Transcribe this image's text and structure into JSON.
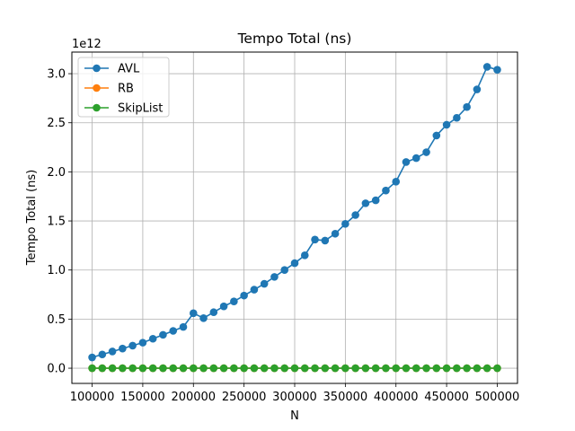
{
  "chart_data": {
    "type": "line",
    "title": "Tempo Total (ns)",
    "xlabel": "N",
    "ylabel": "Tempo Total (ns)",
    "y_offset_label": "1e12",
    "y_scale": 1000000000000.0,
    "xlim": [
      80000,
      520000
    ],
    "ylim": [
      -0.155,
      3.22
    ],
    "x_ticks": [
      100000,
      150000,
      200000,
      250000,
      300000,
      350000,
      400000,
      450000,
      500000
    ],
    "x_tick_labels": [
      "100000",
      "150000",
      "200000",
      "250000",
      "300000",
      "350000",
      "400000",
      "450000",
      "500000"
    ],
    "y_ticks": [
      0.0,
      0.5,
      1.0,
      1.5,
      2.0,
      2.5,
      3.0
    ],
    "y_tick_labels": [
      "0.0",
      "0.5",
      "1.0",
      "1.5",
      "2.0",
      "2.5",
      "3.0"
    ],
    "grid": true,
    "legend_position": "top-left",
    "x": [
      100000,
      110000,
      120000,
      130000,
      140000,
      150000,
      160000,
      170000,
      180000,
      190000,
      200000,
      210000,
      220000,
      230000,
      240000,
      250000,
      260000,
      270000,
      280000,
      290000,
      300000,
      310000,
      320000,
      330000,
      340000,
      350000,
      360000,
      370000,
      380000,
      390000,
      400000,
      410000,
      420000,
      430000,
      440000,
      450000,
      460000,
      470000,
      480000,
      490000,
      500000
    ],
    "series": [
      {
        "name": "AVL",
        "color": "#1f77b4",
        "values": [
          0.11,
          0.14,
          0.17,
          0.2,
          0.23,
          0.26,
          0.3,
          0.34,
          0.38,
          0.42,
          0.56,
          0.51,
          0.57,
          0.63,
          0.68,
          0.74,
          0.8,
          0.86,
          0.93,
          1.0,
          1.07,
          1.15,
          1.31,
          1.3,
          1.37,
          1.47,
          1.56,
          1.68,
          1.71,
          1.81,
          1.9,
          2.1,
          2.14,
          2.2,
          2.37,
          2.48,
          2.55,
          2.66,
          2.84,
          3.07,
          3.04
        ]
      },
      {
        "name": "RB",
        "color": "#ff7f0e",
        "values": [
          0,
          0,
          0,
          0,
          0,
          0,
          0,
          0,
          0,
          0,
          0,
          0,
          0,
          0,
          0,
          0,
          0,
          0,
          0,
          0,
          0,
          0,
          0,
          0,
          0,
          0,
          0,
          0,
          0,
          0,
          0,
          0,
          0,
          0,
          0,
          0,
          0,
          0,
          0,
          0,
          0
        ]
      },
      {
        "name": "SkipList",
        "color": "#2ca02c",
        "values": [
          0,
          0,
          0,
          0,
          0,
          0,
          0,
          0,
          0,
          0,
          0,
          0,
          0,
          0,
          0,
          0,
          0,
          0,
          0,
          0,
          0,
          0,
          0,
          0,
          0,
          0,
          0,
          0,
          0,
          0,
          0,
          0,
          0,
          0,
          0,
          0,
          0,
          0,
          0,
          0,
          0
        ]
      }
    ]
  }
}
